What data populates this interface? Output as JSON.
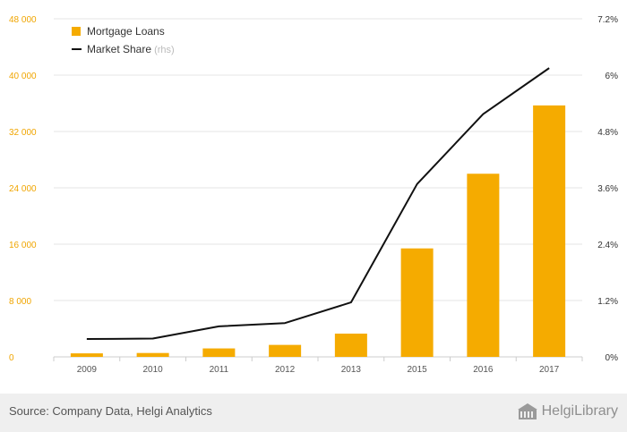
{
  "chart_data": {
    "type": "bar",
    "categories": [
      "2009",
      "2010",
      "2011",
      "2012",
      "2013",
      "2015",
      "2016",
      "2017"
    ],
    "series": [
      {
        "name": "Mortgage Loans",
        "type": "bar",
        "axis": "left",
        "values": [
          500,
          550,
          1200,
          1700,
          3300,
          15400,
          26000,
          35700
        ]
      },
      {
        "name": "Market Share",
        "type": "line",
        "axis": "right",
        "values": [
          0.38,
          0.39,
          0.65,
          0.72,
          1.16,
          3.68,
          5.17,
          6.15
        ]
      }
    ],
    "y_left": {
      "lim": [
        0,
        48000
      ],
      "ticks": [
        0,
        8000,
        16000,
        24000,
        32000,
        40000,
        48000
      ],
      "tick_labels": [
        "0",
        "8 000",
        "16 000",
        "24 000",
        "32 000",
        "40 000",
        "48 000"
      ]
    },
    "y_right": {
      "lim": [
        0,
        7.2
      ],
      "ticks": [
        0,
        1.2,
        2.4,
        3.6,
        4.8,
        6,
        7.2
      ],
      "tick_labels": [
        "0%",
        "1.2%",
        "2.4%",
        "3.6%",
        "4.8%",
        "6%",
        "7.2%"
      ]
    },
    "legend": {
      "placement": "top-left",
      "items": [
        {
          "label": "Mortgage Loans",
          "suffix": ""
        },
        {
          "label": "Market Share",
          "suffix": " (rhs)"
        }
      ]
    },
    "grid": true
  },
  "colors": {
    "bar": "#f5ab00",
    "line": "#111111",
    "left_axis_text": "#f0a500",
    "right_axis_text": "#333333",
    "grid": "#e6e6e6"
  },
  "footer": {
    "source": "Source: Company Data, Helgi Analytics",
    "brand": "HelgiLibrary"
  }
}
